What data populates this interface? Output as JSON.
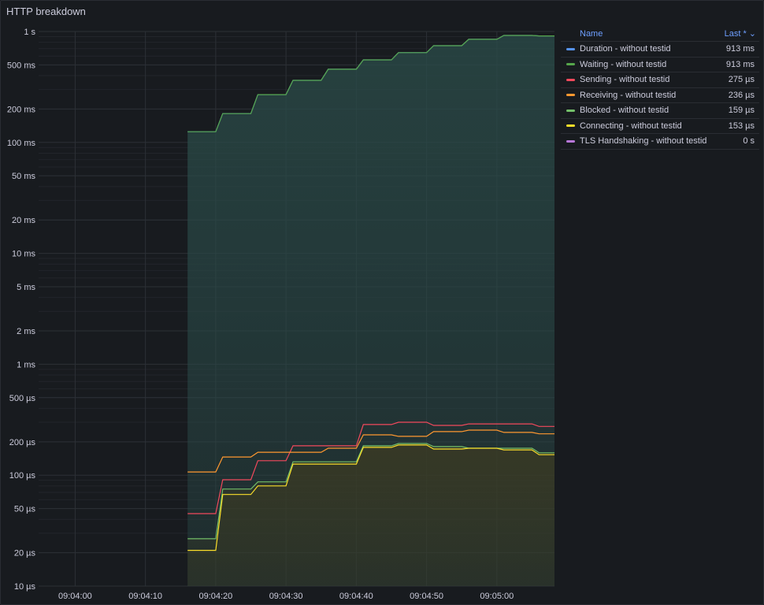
{
  "panel": {
    "title": "HTTP breakdown"
  },
  "legend": {
    "header_name": "Name",
    "header_last": "Last * ⌄"
  },
  "chart_data": {
    "type": "line",
    "title": "HTTP breakdown",
    "yscale": "log",
    "yunit": "µs",
    "ylim": [
      10,
      1000000
    ],
    "xlim_seconds_after_09_04_00": [
      -5.2,
      68.2
    ],
    "y_ticks": [
      {
        "v": 1000000,
        "label": "1 s"
      },
      {
        "v": 500000,
        "label": "500 ms"
      },
      {
        "v": 200000,
        "label": "200 ms"
      },
      {
        "v": 100000,
        "label": "100 ms"
      },
      {
        "v": 50000,
        "label": "50 ms"
      },
      {
        "v": 20000,
        "label": "20 ms"
      },
      {
        "v": 10000,
        "label": "10 ms"
      },
      {
        "v": 5000,
        "label": "5 ms"
      },
      {
        "v": 2000,
        "label": "2 ms"
      },
      {
        "v": 1000,
        "label": "1 ms"
      },
      {
        "v": 500,
        "label": "500 µs"
      },
      {
        "v": 200,
        "label": "200 µs"
      },
      {
        "v": 100,
        "label": "100 µs"
      },
      {
        "v": 50,
        "label": "50 µs"
      },
      {
        "v": 20,
        "label": "20 µs"
      },
      {
        "v": 10,
        "label": "10 µs"
      }
    ],
    "x_ticks": [
      {
        "t": 0,
        "label": "09:04:00"
      },
      {
        "t": 10,
        "label": "09:04:10"
      },
      {
        "t": 20,
        "label": "09:04:20"
      },
      {
        "t": 30,
        "label": "09:04:30"
      },
      {
        "t": 40,
        "label": "09:04:40"
      },
      {
        "t": 50,
        "label": "09:04:50"
      },
      {
        "t": 60,
        "label": "09:05:00"
      }
    ],
    "grid": true,
    "legend_position": "right",
    "times": [
      16,
      20,
      21,
      25,
      26,
      30,
      31,
      35,
      36,
      40,
      41,
      45,
      46,
      50,
      51,
      55,
      56,
      60,
      61,
      65,
      66,
      68.2
    ],
    "series": [
      {
        "name": "Duration - without testid",
        "last": "913 ms",
        "color": "#5794F2",
        "fill": "#2a4a48",
        "values": [
          125000,
          125000,
          182000,
          182000,
          270000,
          270000,
          363000,
          363000,
          457000,
          457000,
          555000,
          555000,
          645000,
          645000,
          745000,
          745000,
          850000,
          850000,
          922000,
          922000,
          913000,
          913000
        ]
      },
      {
        "name": "Waiting - without testid",
        "last": "913 ms",
        "color": "#56A64B",
        "fill": "#2a4a48",
        "values": [
          125000,
          125000,
          182000,
          182000,
          270000,
          270000,
          363000,
          363000,
          457000,
          457000,
          555000,
          555000,
          645000,
          645000,
          745000,
          745000,
          850000,
          850000,
          922000,
          922000,
          913000,
          913000
        ]
      },
      {
        "name": "Sending - without testid",
        "last": "275 µs",
        "color": "#F2495C",
        "fill": null,
        "values": [
          45,
          45,
          91,
          91,
          135,
          135,
          184,
          184,
          184,
          184,
          286,
          286,
          300,
          300,
          281,
          281,
          290,
          290,
          290,
          290,
          275,
          275
        ]
      },
      {
        "name": "Receiving - without testid",
        "last": "236 µs",
        "color": "#FF9830",
        "fill": null,
        "values": [
          107,
          107,
          146,
          146,
          161,
          161,
          161,
          161,
          175,
          175,
          231,
          231,
          224,
          224,
          247,
          247,
          255,
          255,
          243,
          243,
          236,
          236
        ]
      },
      {
        "name": "Blocked - without testid",
        "last": "159 µs",
        "color": "#73BF69",
        "fill": "#3b3a22",
        "values": [
          26.7,
          26.7,
          75,
          75,
          87,
          87,
          132,
          132,
          132,
          132,
          184,
          184,
          193,
          193,
          181,
          181,
          175,
          175,
          175,
          175,
          159,
          159
        ]
      },
      {
        "name": "Connecting - without testid",
        "last": "153 µs",
        "color": "#FADE2A",
        "fill": "#3b3a22",
        "values": [
          21,
          21,
          67,
          67,
          80,
          80,
          126,
          126,
          126,
          126,
          178,
          178,
          187,
          187,
          172,
          172,
          175,
          175,
          169,
          169,
          153,
          153
        ]
      },
      {
        "name": "TLS Handshaking - without testid",
        "last": "0 s",
        "color": "#B877D9",
        "fill": null,
        "values": [
          0,
          0,
          0,
          0,
          0,
          0,
          0,
          0,
          0,
          0,
          0,
          0,
          0,
          0,
          0,
          0,
          0,
          0,
          0,
          0,
          0,
          0
        ]
      }
    ]
  }
}
